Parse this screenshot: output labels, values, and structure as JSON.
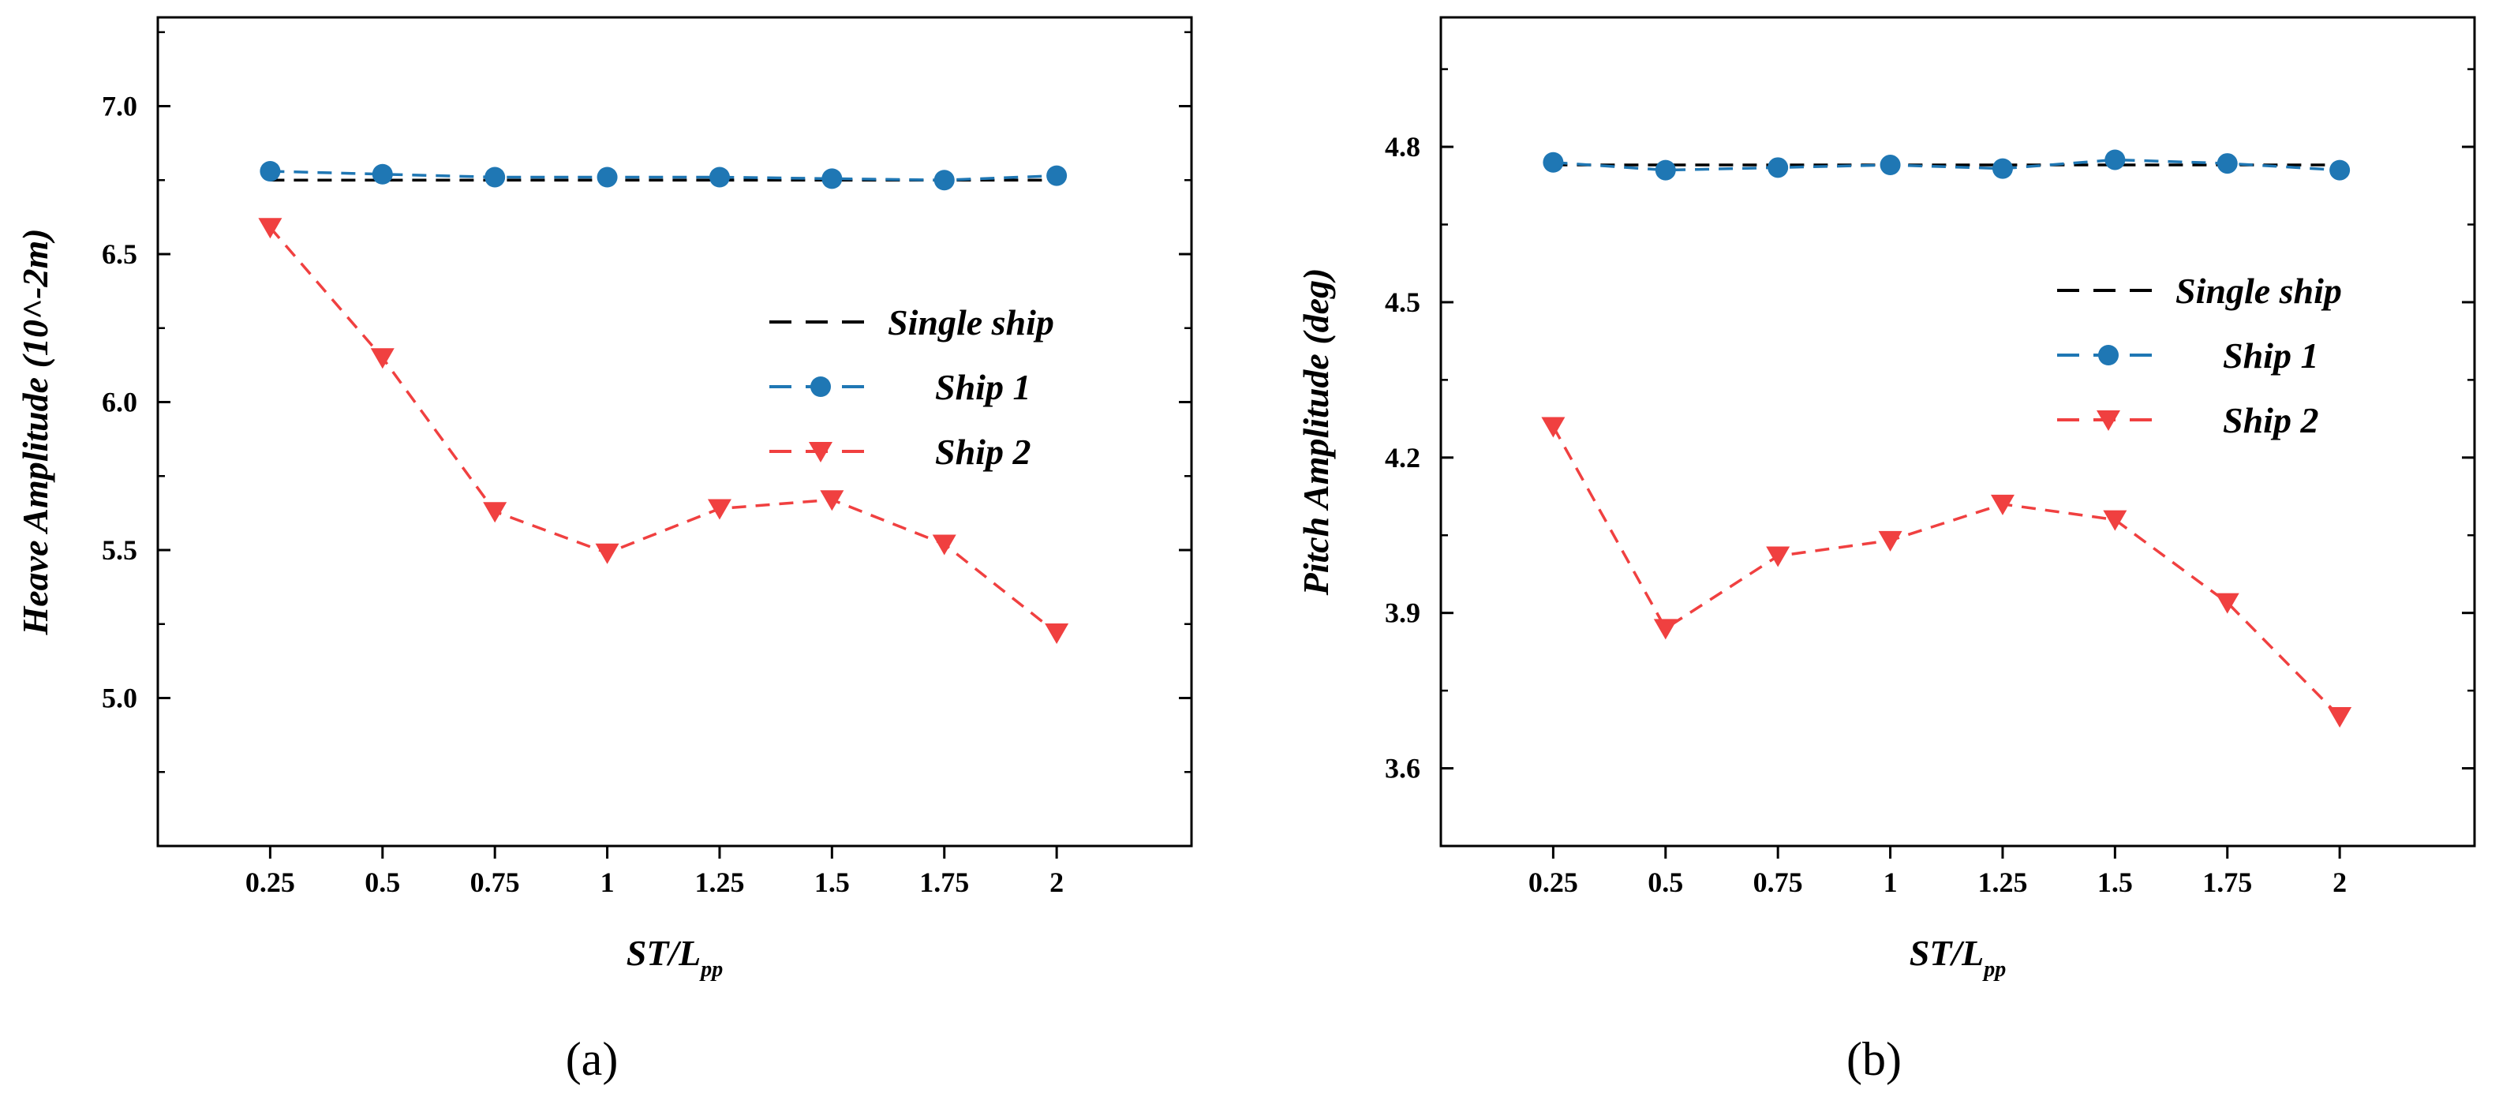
{
  "colors": {
    "single": "#000000",
    "ship1": "#1f77b4",
    "ship2": "#f04040"
  },
  "chart_data": [
    {
      "type": "line",
      "panel_label": "(a)",
      "categories": [
        "0.25",
        "0.5",
        "0.75",
        "1",
        "1.25",
        "1.5",
        "1.75",
        "2"
      ],
      "x": [
        0.25,
        0.5,
        0.75,
        1,
        1.25,
        1.5,
        1.75,
        2
      ],
      "xlim": [
        0.0,
        2.3
      ],
      "xlabel_main": "ST/L",
      "xlabel_sub": "pp",
      "ylabel": "Heave Amplitude (10^-2m)",
      "ylim": [
        4.5,
        7.3
      ],
      "yticks": [
        "5.0",
        "5.5",
        "6.0",
        "6.5",
        "7.0"
      ],
      "yticks_values": [
        5.0,
        5.5,
        6.0,
        6.5,
        7.0
      ],
      "legend_position": "center-right",
      "series": [
        {
          "name": "Single ship",
          "key": "single",
          "marker": "none",
          "values": [
            6.75,
            6.75,
            6.75,
            6.75,
            6.75,
            6.75,
            6.75,
            6.75
          ]
        },
        {
          "name": "Ship 1",
          "key": "ship1",
          "marker": "circle",
          "values": [
            6.78,
            6.77,
            6.76,
            6.76,
            6.76,
            6.755,
            6.75,
            6.765
          ]
        },
        {
          "name": "Ship 2",
          "key": "ship2",
          "marker": "triangle-down",
          "values": [
            6.59,
            6.15,
            5.63,
            5.49,
            5.64,
            5.67,
            5.52,
            5.22
          ]
        }
      ]
    },
    {
      "type": "line",
      "panel_label": "(b)",
      "categories": [
        "0.25",
        "0.5",
        "0.75",
        "1",
        "1.25",
        "1.5",
        "1.75",
        "2"
      ],
      "x": [
        0.25,
        0.5,
        0.75,
        1,
        1.25,
        1.5,
        1.75,
        2
      ],
      "xlim": [
        0.0,
        2.3
      ],
      "xlabel_main": "ST/L",
      "xlabel_sub": "pp",
      "ylabel": "Pitch Amplitude (deg)",
      "ylim": [
        3.45,
        5.05
      ],
      "yticks": [
        "3.6",
        "3.9",
        "4.2",
        "4.5",
        "4.8"
      ],
      "yticks_values": [
        3.6,
        3.9,
        4.2,
        4.5,
        4.8
      ],
      "legend_position": "center-right",
      "series": [
        {
          "name": "Single ship",
          "key": "single",
          "marker": "none",
          "values": [
            4.765,
            4.765,
            4.765,
            4.765,
            4.765,
            4.765,
            4.765,
            4.765
          ]
        },
        {
          "name": "Ship 1",
          "key": "ship1",
          "marker": "circle",
          "values": [
            4.77,
            4.755,
            4.76,
            4.765,
            4.758,
            4.775,
            4.768,
            4.755
          ]
        },
        {
          "name": "Ship 2",
          "key": "ship2",
          "marker": "triangle-down",
          "values": [
            4.26,
            3.87,
            4.01,
            4.04,
            4.11,
            4.08,
            3.92,
            3.7
          ]
        }
      ]
    }
  ]
}
